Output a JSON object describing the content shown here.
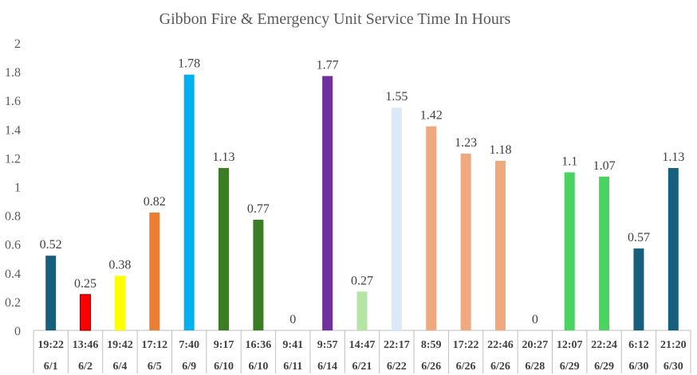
{
  "chart_data": {
    "type": "bar",
    "title": "Gibbon Fire & Emergency Unit Service Time In Hours",
    "xlabel": "",
    "ylabel": "",
    "ylim": [
      0,
      2
    ],
    "yticks": [
      "0",
      "0.2",
      "0.4",
      "0.6",
      "0.8",
      "1",
      "1.2",
      "1.4",
      "1.6",
      "1.8",
      "2"
    ],
    "grid": false,
    "legend": "none",
    "categories": [
      {
        "time": "19:22",
        "date": "6/1"
      },
      {
        "time": "13:46",
        "date": "6/2"
      },
      {
        "time": "19:42",
        "date": "6/4"
      },
      {
        "time": "17:12",
        "date": "6/5"
      },
      {
        "time": "7:40",
        "date": "6/9"
      },
      {
        "time": "9:17",
        "date": "6/10"
      },
      {
        "time": "16:36",
        "date": "6/10"
      },
      {
        "time": "9:41",
        "date": "6/11"
      },
      {
        "time": "9:57",
        "date": "6/14"
      },
      {
        "time": "14:47",
        "date": "6/21"
      },
      {
        "time": "22:17",
        "date": "6/22"
      },
      {
        "time": "8:59",
        "date": "6/26"
      },
      {
        "time": "17:22",
        "date": "6/26"
      },
      {
        "time": "22:46",
        "date": "6/26"
      },
      {
        "time": "20:27",
        "date": "6/28"
      },
      {
        "time": "12:07",
        "date": "6/29"
      },
      {
        "time": "22:24",
        "date": "6/29"
      },
      {
        "time": "6:12",
        "date": "6/30"
      },
      {
        "time": "21:20",
        "date": "6/30"
      }
    ],
    "values": [
      0.52,
      0.25,
      0.38,
      0.82,
      1.78,
      1.13,
      0.77,
      0,
      1.77,
      0.27,
      1.55,
      1.42,
      1.23,
      1.18,
      0,
      1.1,
      1.07,
      0.57,
      1.13
    ],
    "data_labels": [
      "0.52",
      "0.25",
      "0.38",
      "0.82",
      "1.78",
      "1.13",
      "0.77",
      "0",
      "1.77",
      "0.27",
      "1.55",
      "1.42",
      "1.23",
      "1.18",
      "0",
      "1.1",
      "1.07",
      "0.57",
      "1.13"
    ],
    "colors": [
      "#17607d",
      "#ff0000",
      "#ffff00",
      "#ed7d31",
      "#00b0f0",
      "#3a7d22",
      "#3a7d22",
      "#3a7d22",
      "#7030a0",
      "#b4e5a2",
      "#dae9f8",
      "#f0a87e",
      "#f0a87e",
      "#f0a87e",
      "#f0a87e",
      "#4bd35f",
      "#4bd35f",
      "#17607d",
      "#17607d"
    ],
    "outlined": [
      false,
      true,
      false,
      false,
      false,
      false,
      false,
      false,
      false,
      false,
      false,
      false,
      false,
      false,
      false,
      false,
      false,
      false,
      false
    ]
  }
}
